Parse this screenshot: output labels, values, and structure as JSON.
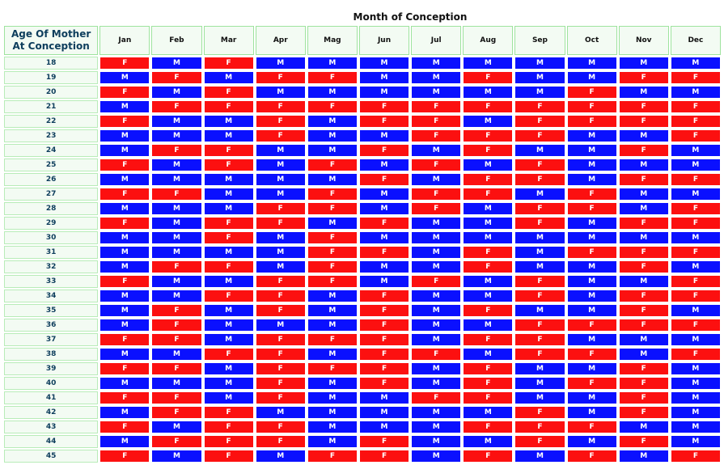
{
  "title": "Month of Conception",
  "corner_label": "Age Of Mother At Conception",
  "colors": {
    "M": "#0a10ff",
    "F": "#fc1010",
    "header_bg": "#f3fbf3",
    "header_border": "#9ee39e"
  },
  "months": [
    "Jan",
    "Feb",
    "Mar",
    "Apr",
    "Mag",
    "Jun",
    "Jul",
    "Aug",
    "Sep",
    "Oct",
    "Nov",
    "Dec"
  ],
  "rows": [
    {
      "age": "18",
      "values": [
        "F",
        "M",
        "F",
        "M",
        "M",
        "M",
        "M",
        "M",
        "M",
        "M",
        "M",
        "M"
      ]
    },
    {
      "age": "19",
      "values": [
        "M",
        "F",
        "M",
        "F",
        "F",
        "M",
        "M",
        "F",
        "M",
        "M",
        "F",
        "F"
      ]
    },
    {
      "age": "20",
      "values": [
        "F",
        "M",
        "F",
        "M",
        "M",
        "M",
        "M",
        "M",
        "M",
        "F",
        "M",
        "M"
      ]
    },
    {
      "age": "21",
      "values": [
        "M",
        "F",
        "F",
        "F",
        "F",
        "F",
        "F",
        "F",
        "F",
        "F",
        "F",
        "F"
      ]
    },
    {
      "age": "22",
      "values": [
        "F",
        "M",
        "M",
        "F",
        "M",
        "F",
        "F",
        "M",
        "F",
        "F",
        "F",
        "F"
      ]
    },
    {
      "age": "23",
      "values": [
        "M",
        "M",
        "M",
        "F",
        "M",
        "M",
        "F",
        "F",
        "F",
        "M",
        "M",
        "F"
      ]
    },
    {
      "age": "24",
      "values": [
        "M",
        "F",
        "F",
        "M",
        "M",
        "F",
        "M",
        "F",
        "M",
        "M",
        "F",
        "M"
      ]
    },
    {
      "age": "25",
      "values": [
        "F",
        "M",
        "F",
        "M",
        "F",
        "M",
        "F",
        "M",
        "F",
        "M",
        "M",
        "M"
      ]
    },
    {
      "age": "26",
      "values": [
        "M",
        "M",
        "M",
        "M",
        "M",
        "F",
        "M",
        "F",
        "F",
        "M",
        "F",
        "F"
      ]
    },
    {
      "age": "27",
      "values": [
        "F",
        "F",
        "M",
        "M",
        "F",
        "M",
        "F",
        "F",
        "M",
        "F",
        "M",
        "M"
      ]
    },
    {
      "age": "28",
      "values": [
        "M",
        "M",
        "M",
        "F",
        "F",
        "M",
        "F",
        "M",
        "F",
        "F",
        "M",
        "F"
      ]
    },
    {
      "age": "29",
      "values": [
        "F",
        "M",
        "F",
        "F",
        "M",
        "F",
        "M",
        "M",
        "F",
        "M",
        "F",
        "F"
      ]
    },
    {
      "age": "30",
      "values": [
        "M",
        "M",
        "F",
        "M",
        "F",
        "M",
        "M",
        "M",
        "M",
        "M",
        "M",
        "M"
      ]
    },
    {
      "age": "31",
      "values": [
        "M",
        "M",
        "M",
        "M",
        "F",
        "F",
        "M",
        "F",
        "M",
        "F",
        "F",
        "F"
      ]
    },
    {
      "age": "32",
      "values": [
        "M",
        "F",
        "F",
        "M",
        "F",
        "M",
        "M",
        "F",
        "M",
        "M",
        "F",
        "M"
      ]
    },
    {
      "age": "33",
      "values": [
        "F",
        "M",
        "M",
        "F",
        "F",
        "M",
        "F",
        "M",
        "F",
        "M",
        "M",
        "F"
      ]
    },
    {
      "age": "34",
      "values": [
        "M",
        "M",
        "F",
        "F",
        "M",
        "F",
        "M",
        "M",
        "F",
        "M",
        "F",
        "F"
      ]
    },
    {
      "age": "35",
      "values": [
        "M",
        "F",
        "M",
        "F",
        "M",
        "F",
        "M",
        "F",
        "M",
        "M",
        "F",
        "M"
      ]
    },
    {
      "age": "36",
      "values": [
        "M",
        "F",
        "M",
        "M",
        "M",
        "F",
        "M",
        "M",
        "F",
        "F",
        "F",
        "F"
      ]
    },
    {
      "age": "37",
      "values": [
        "F",
        "F",
        "M",
        "F",
        "F",
        "F",
        "M",
        "F",
        "F",
        "M",
        "M",
        "M"
      ]
    },
    {
      "age": "38",
      "values": [
        "M",
        "M",
        "F",
        "F",
        "M",
        "F",
        "F",
        "M",
        "F",
        "F",
        "M",
        "F"
      ]
    },
    {
      "age": "39",
      "values": [
        "F",
        "F",
        "M",
        "F",
        "F",
        "F",
        "M",
        "F",
        "M",
        "M",
        "F",
        "M"
      ]
    },
    {
      "age": "40",
      "values": [
        "M",
        "M",
        "M",
        "F",
        "M",
        "F",
        "M",
        "F",
        "M",
        "F",
        "F",
        "M"
      ]
    },
    {
      "age": "41",
      "values": [
        "F",
        "F",
        "M",
        "F",
        "M",
        "M",
        "F",
        "F",
        "M",
        "M",
        "F",
        "M"
      ]
    },
    {
      "age": "42",
      "values": [
        "M",
        "F",
        "F",
        "M",
        "M",
        "M",
        "M",
        "M",
        "F",
        "M",
        "F",
        "M"
      ]
    },
    {
      "age": "43",
      "values": [
        "F",
        "M",
        "F",
        "F",
        "M",
        "M",
        "M",
        "F",
        "F",
        "F",
        "M",
        "M"
      ]
    },
    {
      "age": "44",
      "values": [
        "M",
        "F",
        "F",
        "F",
        "M",
        "F",
        "M",
        "M",
        "F",
        "M",
        "F",
        "M"
      ]
    },
    {
      "age": "45",
      "values": [
        "F",
        "M",
        "F",
        "M",
        "F",
        "F",
        "M",
        "F",
        "M",
        "F",
        "M",
        "F"
      ]
    }
  ]
}
